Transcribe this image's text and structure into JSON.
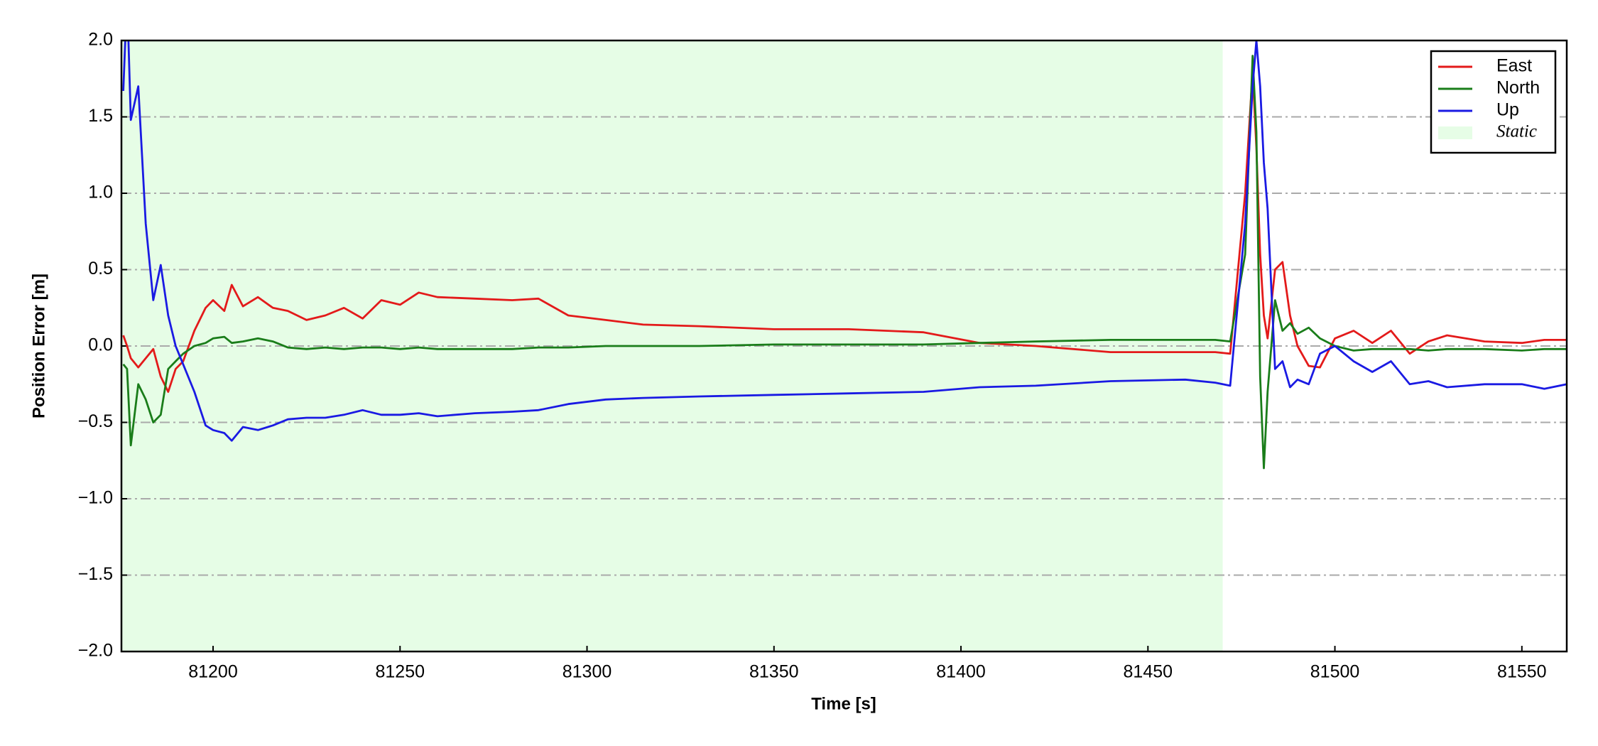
{
  "chart_data": {
    "type": "line",
    "xlabel": "Time [s]",
    "ylabel": "Position Error [m]",
    "xlim": [
      81175.5,
      81562
    ],
    "ylim": [
      -2,
      2
    ],
    "xticks": [
      81200,
      81250,
      81300,
      81350,
      81400,
      81450,
      81500,
      81550
    ],
    "yticks": [
      {
        "value": -2,
        "label": "−2.0"
      },
      {
        "value": -1.5,
        "label": "−1.5"
      },
      {
        "value": -1,
        "label": "−1.0"
      },
      {
        "value": -0.5,
        "label": "−0.5"
      },
      {
        "value": 0,
        "label": "0.0"
      },
      {
        "value": 0.5,
        "label": "0.5"
      },
      {
        "value": 1,
        "label": "1.0"
      },
      {
        "value": 1.5,
        "label": "1.5"
      },
      {
        "value": 2,
        "label": "2.0"
      }
    ],
    "grid": true,
    "legend": "upper right",
    "span": {
      "name": "Static",
      "color": "#e6fde6",
      "range": [
        81175.5,
        81470
      ]
    },
    "x": [
      81176,
      81177,
      81178,
      81180,
      81182,
      81184,
      81186,
      81188,
      81190,
      81192,
      81195,
      81198,
      81200,
      81203,
      81205,
      81208,
      81212,
      81216,
      81220,
      81225,
      81230,
      81235,
      81240,
      81245,
      81250,
      81255,
      81260,
      81270,
      81280,
      81287,
      81295,
      81305,
      81315,
      81330,
      81350,
      81370,
      81390,
      81405,
      81420,
      81440,
      81460,
      81468,
      81472,
      81476,
      81478,
      81479,
      81480,
      81481,
      81482,
      81484,
      81486,
      81488,
      81490,
      81493,
      81496,
      81500,
      81505,
      81510,
      81515,
      81520,
      81525,
      81530,
      81540,
      81550,
      81556,
      81562
    ],
    "series": [
      {
        "name": "East",
        "color": "#e31a1a",
        "values": [
          0.07,
          0.0,
          -0.08,
          -0.14,
          -0.08,
          -0.02,
          -0.2,
          -0.3,
          -0.15,
          -0.1,
          0.1,
          0.25,
          0.3,
          0.23,
          0.4,
          0.26,
          0.32,
          0.25,
          0.23,
          0.17,
          0.2,
          0.25,
          0.18,
          0.3,
          0.27,
          0.35,
          0.32,
          0.31,
          0.3,
          0.31,
          0.2,
          0.17,
          0.14,
          0.13,
          0.11,
          0.11,
          0.09,
          0.02,
          0.0,
          -0.04,
          -0.04,
          -0.04,
          -0.05,
          1.0,
          1.8,
          1.3,
          0.6,
          0.2,
          0.05,
          0.5,
          0.55,
          0.2,
          0.0,
          -0.13,
          -0.14,
          0.05,
          0.1,
          0.02,
          0.1,
          -0.05,
          0.03,
          0.07,
          0.03,
          0.02,
          0.04,
          0.04
        ]
      },
      {
        "name": "North",
        "color": "#1a7d1a",
        "values": [
          -0.12,
          -0.15,
          -0.65,
          -0.25,
          -0.35,
          -0.5,
          -0.45,
          -0.15,
          -0.1,
          -0.05,
          0.0,
          0.02,
          0.05,
          0.06,
          0.02,
          0.03,
          0.05,
          0.03,
          -0.01,
          -0.02,
          -0.01,
          -0.02,
          -0.01,
          -0.01,
          -0.02,
          -0.01,
          -0.02,
          -0.02,
          -0.02,
          -0.01,
          -0.01,
          0.0,
          0.0,
          0.0,
          0.01,
          0.01,
          0.01,
          0.02,
          0.03,
          0.04,
          0.04,
          0.04,
          0.03,
          0.6,
          1.9,
          1.4,
          -0.2,
          -0.8,
          -0.3,
          0.3,
          0.1,
          0.15,
          0.08,
          0.12,
          0.05,
          0.0,
          -0.03,
          -0.02,
          -0.02,
          -0.02,
          -0.03,
          -0.02,
          -0.02,
          -0.03,
          -0.02,
          -0.02
        ]
      },
      {
        "name": "Up",
        "color": "#1a1ae3",
        "values": [
          1.67,
          2.3,
          1.48,
          1.7,
          0.8,
          0.3,
          0.53,
          0.2,
          0.0,
          -0.12,
          -0.3,
          -0.52,
          -0.55,
          -0.57,
          -0.62,
          -0.53,
          -0.55,
          -0.52,
          -0.48,
          -0.47,
          -0.47,
          -0.45,
          -0.42,
          -0.45,
          -0.45,
          -0.44,
          -0.46,
          -0.44,
          -0.43,
          -0.42,
          -0.38,
          -0.35,
          -0.34,
          -0.33,
          -0.32,
          -0.31,
          -0.3,
          -0.27,
          -0.26,
          -0.23,
          -0.22,
          -0.24,
          -0.26,
          0.8,
          1.7,
          2.0,
          1.7,
          1.2,
          0.9,
          -0.15,
          -0.1,
          -0.27,
          -0.22,
          -0.25,
          -0.05,
          0.0,
          -0.1,
          -0.17,
          -0.1,
          -0.25,
          -0.23,
          -0.27,
          -0.25,
          -0.25,
          -0.28,
          -0.25
        ]
      }
    ]
  }
}
